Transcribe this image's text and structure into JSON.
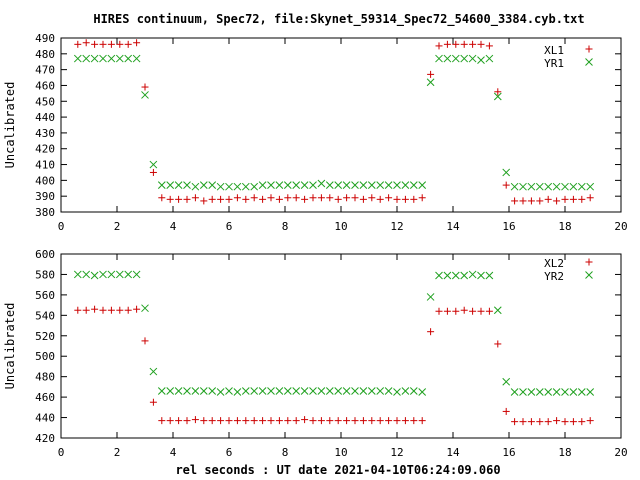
{
  "title": "HIRES continuum, Spec72, file:Skynet_59314_Spec72_54600_3384.cyb.txt",
  "xlabel": "rel seconds : UT date 2021-04-10T06:24:09.060",
  "colors": {
    "plus_series": "#cc0000",
    "cross_series": "#1fa01f",
    "axis": "#000000"
  },
  "chart_data": [
    {
      "type": "scatter",
      "ylabel": "Uncalibrated",
      "xlim": [
        0,
        20
      ],
      "ylim": [
        380,
        490
      ],
      "xticks": [
        0,
        2,
        4,
        6,
        8,
        10,
        12,
        14,
        16,
        18,
        20
      ],
      "yticks": [
        380,
        390,
        400,
        410,
        420,
        430,
        440,
        450,
        460,
        470,
        480,
        490
      ],
      "legend_position": "top-right",
      "series": [
        {
          "name": "XL1",
          "marker": "plus",
          "x": [
            0.6,
            0.9,
            1.2,
            1.5,
            1.8,
            2.1,
            2.4,
            2.7,
            3.0,
            3.3,
            3.6,
            3.9,
            4.2,
            4.5,
            4.8,
            5.1,
            5.4,
            5.7,
            6.0,
            6.3,
            6.6,
            6.9,
            7.2,
            7.5,
            7.8,
            8.1,
            8.4,
            8.7,
            9.0,
            9.3,
            9.6,
            9.9,
            10.2,
            10.5,
            10.8,
            11.1,
            11.4,
            11.7,
            12.0,
            12.3,
            12.6,
            12.9,
            13.2,
            13.5,
            13.8,
            14.1,
            14.4,
            14.7,
            15.0,
            15.3,
            15.6,
            15.9,
            16.2,
            16.5,
            16.8,
            17.1,
            17.4,
            17.7,
            18.0,
            18.3,
            18.6,
            18.9
          ],
          "y": [
            486,
            487,
            486,
            486,
            486,
            486,
            486,
            487,
            459,
            405,
            389,
            388,
            388,
            388,
            389,
            387,
            388,
            388,
            388,
            389,
            388,
            389,
            388,
            389,
            388,
            389,
            389,
            388,
            389,
            389,
            389,
            388,
            389,
            389,
            388,
            389,
            388,
            389,
            388,
            388,
            388,
            389,
            467,
            485,
            486,
            486,
            486,
            486,
            486,
            485,
            456,
            397,
            387,
            387,
            387,
            387,
            388,
            387,
            388,
            388,
            388,
            389
          ]
        },
        {
          "name": "YR1",
          "marker": "cross",
          "x": [
            0.6,
            0.9,
            1.2,
            1.5,
            1.8,
            2.1,
            2.4,
            2.7,
            3.0,
            3.3,
            3.6,
            3.9,
            4.2,
            4.5,
            4.8,
            5.1,
            5.4,
            5.7,
            6.0,
            6.3,
            6.6,
            6.9,
            7.2,
            7.5,
            7.8,
            8.1,
            8.4,
            8.7,
            9.0,
            9.3,
            9.6,
            9.9,
            10.2,
            10.5,
            10.8,
            11.1,
            11.4,
            11.7,
            12.0,
            12.3,
            12.6,
            12.9,
            13.2,
            13.5,
            13.8,
            14.1,
            14.4,
            14.7,
            15.0,
            15.3,
            15.6,
            15.9,
            16.2,
            16.5,
            16.8,
            17.1,
            17.4,
            17.7,
            18.0,
            18.3,
            18.6,
            18.9
          ],
          "y": [
            477,
            477,
            477,
            477,
            477,
            477,
            477,
            477,
            454,
            410,
            397,
            397,
            397,
            397,
            396,
            397,
            397,
            396,
            396,
            396,
            396,
            396,
            397,
            397,
            397,
            397,
            397,
            397,
            397,
            398,
            397,
            397,
            397,
            397,
            397,
            397,
            397,
            397,
            397,
            397,
            397,
            397,
            462,
            477,
            477,
            477,
            477,
            477,
            476,
            477,
            453,
            405,
            396,
            396,
            396,
            396,
            396,
            396,
            396,
            396,
            396,
            396
          ]
        }
      ]
    },
    {
      "type": "scatter",
      "ylabel": "Uncalibrated",
      "xlim": [
        0,
        20
      ],
      "ylim": [
        420,
        600
      ],
      "xticks": [
        0,
        2,
        4,
        6,
        8,
        10,
        12,
        14,
        16,
        18,
        20
      ],
      "yticks": [
        420,
        440,
        460,
        480,
        500,
        520,
        540,
        560,
        580,
        600
      ],
      "legend_position": "top-right",
      "series": [
        {
          "name": "XL2",
          "marker": "plus",
          "x": [
            0.6,
            0.9,
            1.2,
            1.5,
            1.8,
            2.1,
            2.4,
            2.7,
            3.0,
            3.3,
            3.6,
            3.9,
            4.2,
            4.5,
            4.8,
            5.1,
            5.4,
            5.7,
            6.0,
            6.3,
            6.6,
            6.9,
            7.2,
            7.5,
            7.8,
            8.1,
            8.4,
            8.7,
            9.0,
            9.3,
            9.6,
            9.9,
            10.2,
            10.5,
            10.8,
            11.1,
            11.4,
            11.7,
            12.0,
            12.3,
            12.6,
            12.9,
            13.2,
            13.5,
            13.8,
            14.1,
            14.4,
            14.7,
            15.0,
            15.3,
            15.6,
            15.9,
            16.2,
            16.5,
            16.8,
            17.1,
            17.4,
            17.7,
            18.0,
            18.3,
            18.6,
            18.9
          ],
          "y": [
            545,
            545,
            546,
            545,
            545,
            545,
            545,
            546,
            515,
            455,
            437,
            437,
            437,
            437,
            438,
            437,
            437,
            437,
            437,
            437,
            437,
            437,
            437,
            437,
            437,
            437,
            437,
            438,
            437,
            437,
            437,
            437,
            437,
            437,
            437,
            437,
            437,
            437,
            437,
            437,
            437,
            437,
            524,
            544,
            544,
            544,
            545,
            544,
            544,
            544,
            512,
            446,
            436,
            436,
            436,
            436,
            436,
            437,
            436,
            436,
            436,
            437
          ]
        },
        {
          "name": "YR2",
          "marker": "cross",
          "x": [
            0.6,
            0.9,
            1.2,
            1.5,
            1.8,
            2.1,
            2.4,
            2.7,
            3.0,
            3.3,
            3.6,
            3.9,
            4.2,
            4.5,
            4.8,
            5.1,
            5.4,
            5.7,
            6.0,
            6.3,
            6.6,
            6.9,
            7.2,
            7.5,
            7.8,
            8.1,
            8.4,
            8.7,
            9.0,
            9.3,
            9.6,
            9.9,
            10.2,
            10.5,
            10.8,
            11.1,
            11.4,
            11.7,
            12.0,
            12.3,
            12.6,
            12.9,
            13.2,
            13.5,
            13.8,
            14.1,
            14.4,
            14.7,
            15.0,
            15.3,
            15.6,
            15.9,
            16.2,
            16.5,
            16.8,
            17.1,
            17.4,
            17.7,
            18.0,
            18.3,
            18.6,
            18.9
          ],
          "y": [
            580,
            580,
            579,
            580,
            580,
            580,
            580,
            580,
            547,
            485,
            466,
            466,
            466,
            466,
            466,
            466,
            466,
            465,
            466,
            465,
            466,
            466,
            466,
            466,
            466,
            466,
            466,
            466,
            466,
            466,
            466,
            466,
            466,
            466,
            466,
            466,
            466,
            466,
            465,
            466,
            466,
            465,
            558,
            579,
            579,
            579,
            579,
            580,
            579,
            579,
            545,
            475,
            465,
            465,
            465,
            465,
            465,
            465,
            465,
            465,
            465,
            465
          ]
        }
      ]
    }
  ]
}
